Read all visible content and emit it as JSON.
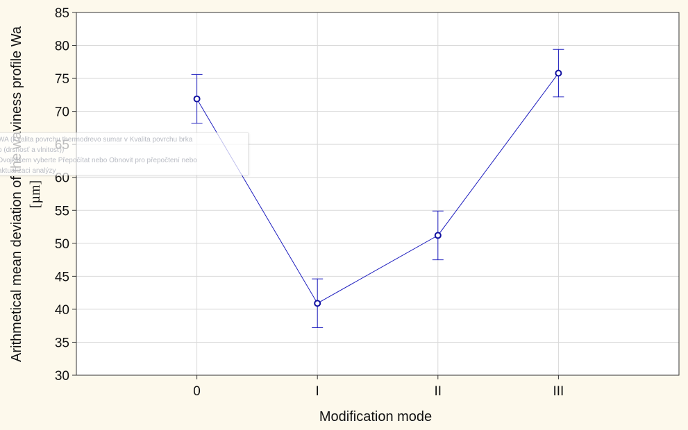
{
  "chart_data": {
    "type": "line",
    "categories": [
      "0",
      "I",
      "II",
      "III"
    ],
    "series": [
      {
        "values": [
          71.9,
          40.9,
          51.2,
          75.8
        ],
        "error_low": [
          68.2,
          37.2,
          47.5,
          72.2
        ],
        "error_high": [
          75.6,
          44.6,
          54.9,
          79.4
        ]
      }
    ],
    "xlabel": "Modification mode",
    "ylabel": "Arithmetical mean deviation of the waviness profile Wa",
    "ylabel_unit": "[µm]",
    "ylim": [
      30,
      85
    ],
    "yticks": [
      30,
      35,
      40,
      45,
      50,
      55,
      60,
      65,
      70,
      75,
      80,
      85
    ],
    "grid": true,
    "legend": "none",
    "colors": {
      "line": "#1f1fbf",
      "grid": "#d9d9d9",
      "background": "#fdf9ec",
      "plot_background": "#ffffff"
    }
  },
  "tooltip": {
    "lines": [
      "WA (Kvalita povrchu thermodrevo sumar v Kvalita povrchu brka",
      "o (drsnosť a vlnitosť))",
      "Dvojklikem vyberte Přepočítat nebo Obnovit pro přepočtení nebo",
      "aktualizaci analýzy"
    ]
  }
}
